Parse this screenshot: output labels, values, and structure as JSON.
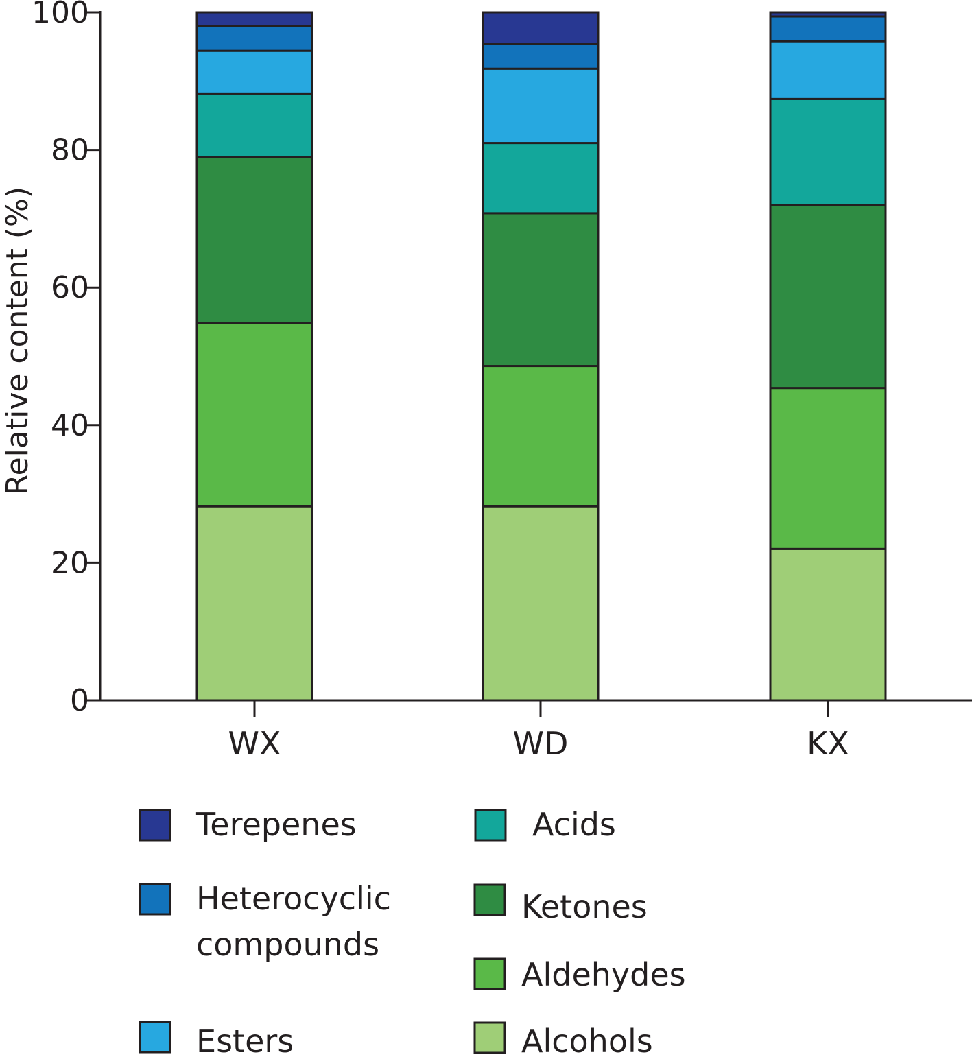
{
  "chart_data": {
    "type": "bar",
    "stacked": true,
    "title": "",
    "xlabel": "",
    "ylabel": "Relative content (%)",
    "ylim": [
      0,
      100
    ],
    "yticks": [
      0,
      20,
      40,
      60,
      80,
      100
    ],
    "grid": false,
    "legend_position": "bottom",
    "categories": [
      "WX",
      "WD",
      "KX"
    ],
    "series": [
      {
        "name": "Alcohols",
        "color": "#9fce77",
        "values": [
          28.2,
          28.2,
          22.0
        ]
      },
      {
        "name": "Aldehydes",
        "color": "#5ab948",
        "values": [
          26.6,
          20.4,
          23.4
        ]
      },
      {
        "name": "Ketones",
        "color": "#2f8c43",
        "values": [
          24.2,
          22.2,
          26.6
        ]
      },
      {
        "name": "Acids",
        "color": "#13a79b",
        "values": [
          9.2,
          10.2,
          15.4
        ]
      },
      {
        "name": "Esters",
        "color": "#27a8e0",
        "values": [
          6.2,
          10.8,
          8.4
        ]
      },
      {
        "name": "Heterocyclic compounds",
        "color": "#1273bb",
        "values": [
          3.6,
          3.6,
          3.6
        ]
      },
      {
        "name": "Terepenes",
        "color": "#283892",
        "values": [
          2.0,
          4.6,
          0.6
        ]
      }
    ]
  },
  "legend": {
    "items": [
      {
        "key": "terpenes",
        "lines": [
          "Terepenes"
        ],
        "color": "#283892"
      },
      {
        "key": "heterocyclic",
        "lines": [
          "Heterocyclic",
          "compounds"
        ],
        "color": "#1273bb"
      },
      {
        "key": "esters",
        "lines": [
          "Esters"
        ],
        "color": "#27a8e0"
      },
      {
        "key": "acids",
        "lines": [
          "Acids"
        ],
        "color": "#13a79b"
      },
      {
        "key": "ketones",
        "lines": [
          "Ketones"
        ],
        "color": "#2f8c43"
      },
      {
        "key": "aldehydes",
        "lines": [
          "Aldehydes"
        ],
        "color": "#5ab948"
      },
      {
        "key": "alcohols",
        "lines": [
          "Alcohols"
        ],
        "color": "#9fce77"
      }
    ]
  }
}
